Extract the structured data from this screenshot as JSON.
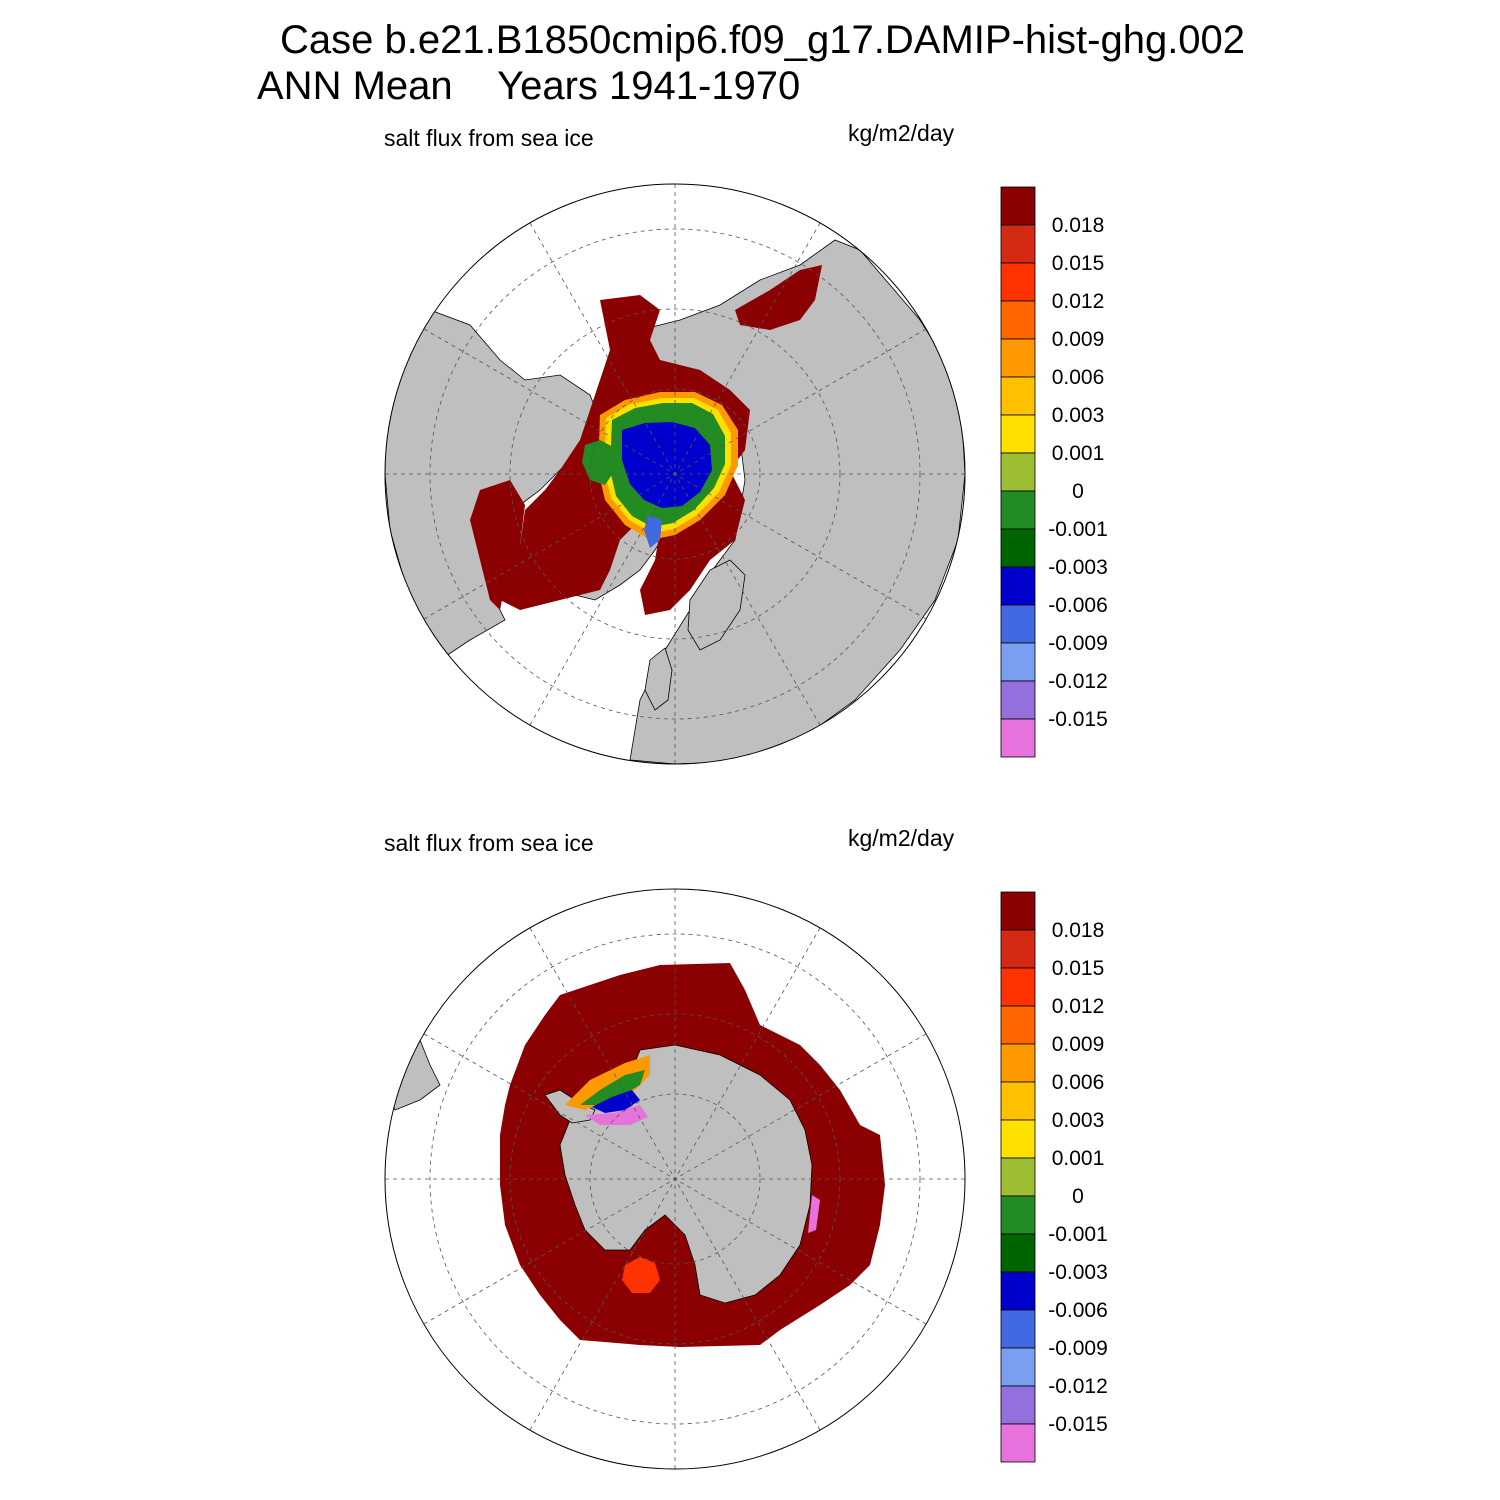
{
  "header": {
    "case_line": "Case b.e21.B1850cmip6.f09_g17.DAMIP-hist-ghg.002",
    "season": "ANN Mean",
    "years": "Years 1941-1970"
  },
  "panels": [
    {
      "id": "north",
      "hemisphere": "Northern Hemisphere",
      "field": "salt flux from sea ice",
      "units": "kg/m2/day"
    },
    {
      "id": "south",
      "hemisphere": "Southern Hemisphere",
      "field": "salt flux from sea ice",
      "units": "kg/m2/day"
    }
  ],
  "colorbar": {
    "labels": [
      "0.018",
      "0.015",
      "0.012",
      "0.009",
      "0.006",
      "0.003",
      "0.001",
      "0",
      "-0.001",
      "-0.003",
      "-0.006",
      "-0.009",
      "-0.012",
      "-0.015"
    ],
    "colors": [
      "#8b0000",
      "#d42a14",
      "#ff3300",
      "#ff6600",
      "#ff9900",
      "#ffc000",
      "#ffe100",
      "#9dbd32",
      "#228b22",
      "#006400",
      "#0000cd",
      "#4169e1",
      "#7b9ff0",
      "#9370db",
      "#e673dc"
    ]
  },
  "map_colors": {
    "land": "#bfbfbf",
    "ocean": "#ffffff",
    "grid": "#555555"
  }
}
